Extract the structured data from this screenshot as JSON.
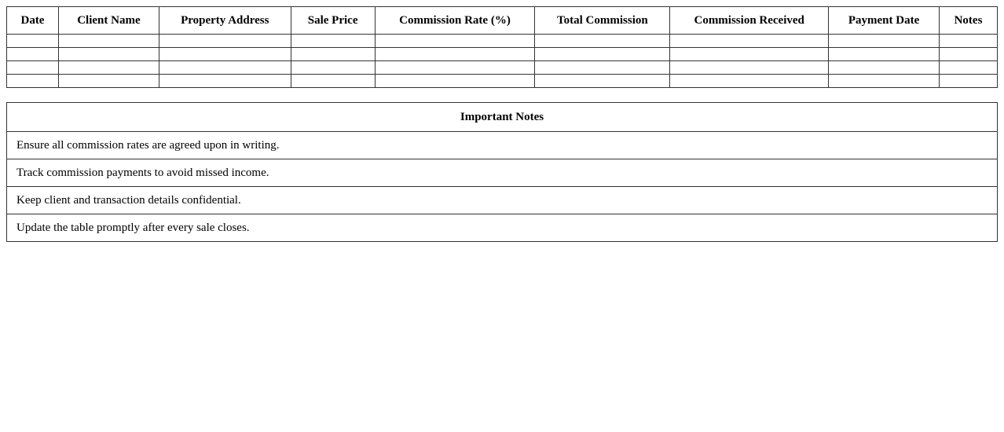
{
  "commission_table": {
    "columns": [
      "Date",
      "Client Name",
      "Property Address",
      "Sale Price",
      "Commission Rate (%)",
      "Total Commission",
      "Commission Received",
      "Payment Date",
      "Notes"
    ],
    "rows": [
      [
        "",
        "",
        "",
        "",
        "",
        "",
        "",
        "",
        ""
      ],
      [
        "",
        "",
        "",
        "",
        "",
        "",
        "",
        "",
        ""
      ],
      [
        "",
        "",
        "",
        "",
        "",
        "",
        "",
        "",
        ""
      ],
      [
        "",
        "",
        "",
        "",
        "",
        "",
        "",
        "",
        ""
      ]
    ]
  },
  "notes": {
    "title": "Important Notes",
    "items": [
      "Ensure all commission rates are agreed upon in writing.",
      "Track commission payments to avoid missed income.",
      "Keep client and transaction details confidential.",
      "Update the table promptly after every sale closes."
    ]
  }
}
